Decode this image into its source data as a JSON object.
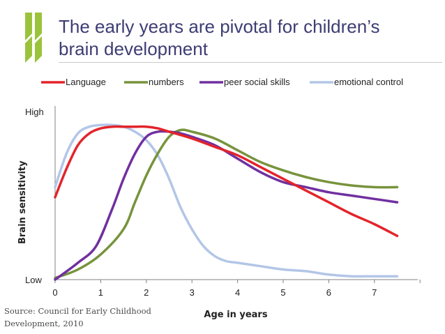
{
  "slide": {
    "title": "The early years are pivotal for children’s\nbrain development",
    "source": "Source: Council for Early Childhood Development, 2010",
    "brand_colors": {
      "logo": "#9ac33b",
      "title": "#3d3d74"
    }
  },
  "chart_data": {
    "type": "line",
    "title": "",
    "xlabel": "Age in years",
    "ylabel": "Brain sensitivity",
    "xlim": [
      0,
      8
    ],
    "ylim": [
      0,
      100
    ],
    "x_ticks": [
      0,
      1,
      2,
      3,
      4,
      5,
      6,
      7
    ],
    "y_tick_labels": [
      {
        "value": 100,
        "label": "High"
      },
      {
        "value": 0,
        "label": "Low"
      }
    ],
    "legend": "top",
    "grid": false,
    "series": [
      {
        "name": "Language",
        "color": "#e3242b",
        "x": [
          0,
          0.25,
          0.5,
          0.75,
          1,
          1.25,
          1.5,
          1.75,
          2,
          2.25,
          2.5,
          3,
          3.5,
          4,
          4.5,
          5,
          5.5,
          6,
          6.5,
          7,
          7.5
        ],
        "y": [
          49,
          66,
          80,
          87,
          90,
          91,
          91,
          91,
          91,
          90,
          88,
          84,
          79,
          74,
          67,
          60,
          53,
          46,
          39,
          33,
          26
        ]
      },
      {
        "name": "numbers",
        "color": "#77933c",
        "x": [
          0,
          0.5,
          1,
          1.5,
          1.75,
          2,
          2.25,
          2.5,
          2.75,
          3,
          3.5,
          4,
          4.5,
          5,
          5.5,
          6,
          6.5,
          7,
          7.5
        ],
        "y": [
          1,
          6,
          15,
          30,
          46,
          62,
          75,
          85,
          89,
          88,
          84,
          77,
          70,
          65,
          61,
          58,
          56,
          55,
          55
        ]
      },
      {
        "name": "peer social skills",
        "color": "#7030a0",
        "x": [
          0,
          0.5,
          0.9,
          1.25,
          1.5,
          1.75,
          2,
          2.25,
          2.5,
          2.75,
          3,
          3.5,
          4,
          4.5,
          5,
          5.5,
          6,
          6.5,
          7,
          7.5
        ],
        "y": [
          0,
          10,
          20,
          42,
          60,
          75,
          85,
          88,
          88,
          87,
          85,
          80,
          72,
          64,
          58,
          55,
          52,
          50,
          48,
          46
        ]
      },
      {
        "name": "emotional control",
        "color": "#b3c6e7",
        "x": [
          0,
          0.25,
          0.5,
          0.75,
          1,
          1.25,
          1.5,
          1.75,
          2,
          2.25,
          2.5,
          2.75,
          3,
          3.25,
          3.5,
          3.75,
          4,
          4.5,
          5,
          5.5,
          6,
          6.5,
          7,
          7.5
        ],
        "y": [
          55,
          75,
          87,
          91,
          92,
          92,
          91,
          88,
          83,
          74,
          60,
          43,
          30,
          20,
          14,
          11,
          10,
          8,
          6,
          5,
          3,
          2,
          2,
          2
        ]
      }
    ]
  }
}
